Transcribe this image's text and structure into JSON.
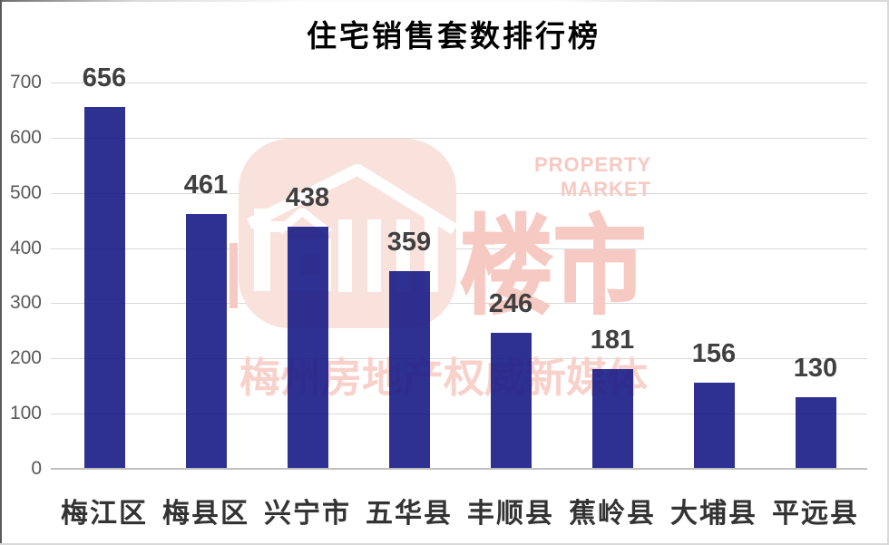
{
  "title": "住宅销售套数排行榜",
  "chart_data": {
    "type": "bar",
    "categories": [
      "梅江区",
      "梅县区",
      "兴宁市",
      "五华县",
      "丰顺县",
      "蕉岭县",
      "大埔县",
      "平远县"
    ],
    "values": [
      656,
      461,
      438,
      359,
      246,
      181,
      156,
      130
    ],
    "title": "住宅销售套数排行榜",
    "xlabel": "",
    "ylabel": "",
    "ylim": [
      0,
      700
    ],
    "ytick_step": 100,
    "grid": true,
    "legend": false,
    "bar_color": "#2d3192",
    "value_label_color": "#404040",
    "axis_tick_color": "#595959",
    "gridline_color": "#d9d9d9"
  },
  "watermark": {
    "logo_text_inner": "梅州",
    "logo_text_outer": "楼市",
    "english_line1": "PROPERTY",
    "english_line2": "MARKET",
    "tagline": "梅州房地产权威新媒体",
    "pink": "#f6c9c2",
    "square_fill": "#f9e1dc"
  }
}
